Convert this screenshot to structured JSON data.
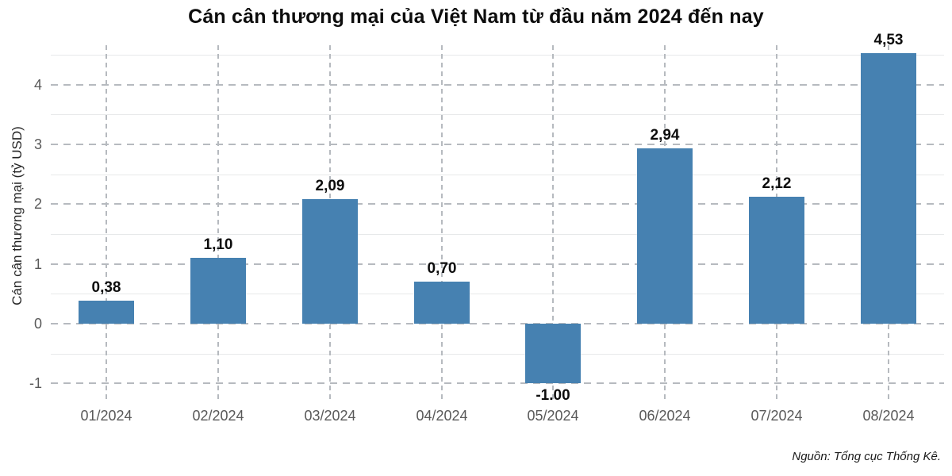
{
  "chart_data": {
    "type": "bar",
    "title": "Cán cân thương mại của Việt Nam từ đầu năm 2024 đến nay",
    "xlabel": "",
    "ylabel": "Cán cân thương mại (tỷ USD)",
    "categories": [
      "01/2024",
      "02/2024",
      "03/2024",
      "04/2024",
      "05/2024",
      "06/2024",
      "07/2024",
      "08/2024"
    ],
    "values": [
      0.38,
      1.1,
      2.09,
      0.7,
      -1.0,
      2.94,
      2.12,
      4.53
    ],
    "value_labels": [
      "0,38",
      "1,10",
      "2,09",
      "0,70",
      "-1.00",
      "2,94",
      "2,12",
      "4,53"
    ],
    "ylim": [
      -1.26,
      4.66
    ],
    "y_major_ticks": [
      4,
      3,
      2,
      1,
      0,
      -1
    ],
    "y_minor_ticks": [
      4.5,
      3.5,
      2.5,
      1.5,
      0.5,
      -0.5
    ],
    "grid": "horizontal major dashed, horizontal minor solid light, vertical dashed at each category",
    "legend": "none",
    "bar_color": "#4681B1"
  },
  "source_note": "Nguồn: Tổng cục Thống Kê.",
  "colors": {
    "bar": "#4681B1",
    "grid_major": "#b6babf",
    "grid_minor": "#e7e9ea",
    "tick_label": "#595959",
    "title": "#0d0d0d",
    "axis_title": "#262626",
    "value_label": "#0d0d0d",
    "background": "#ffffff"
  }
}
